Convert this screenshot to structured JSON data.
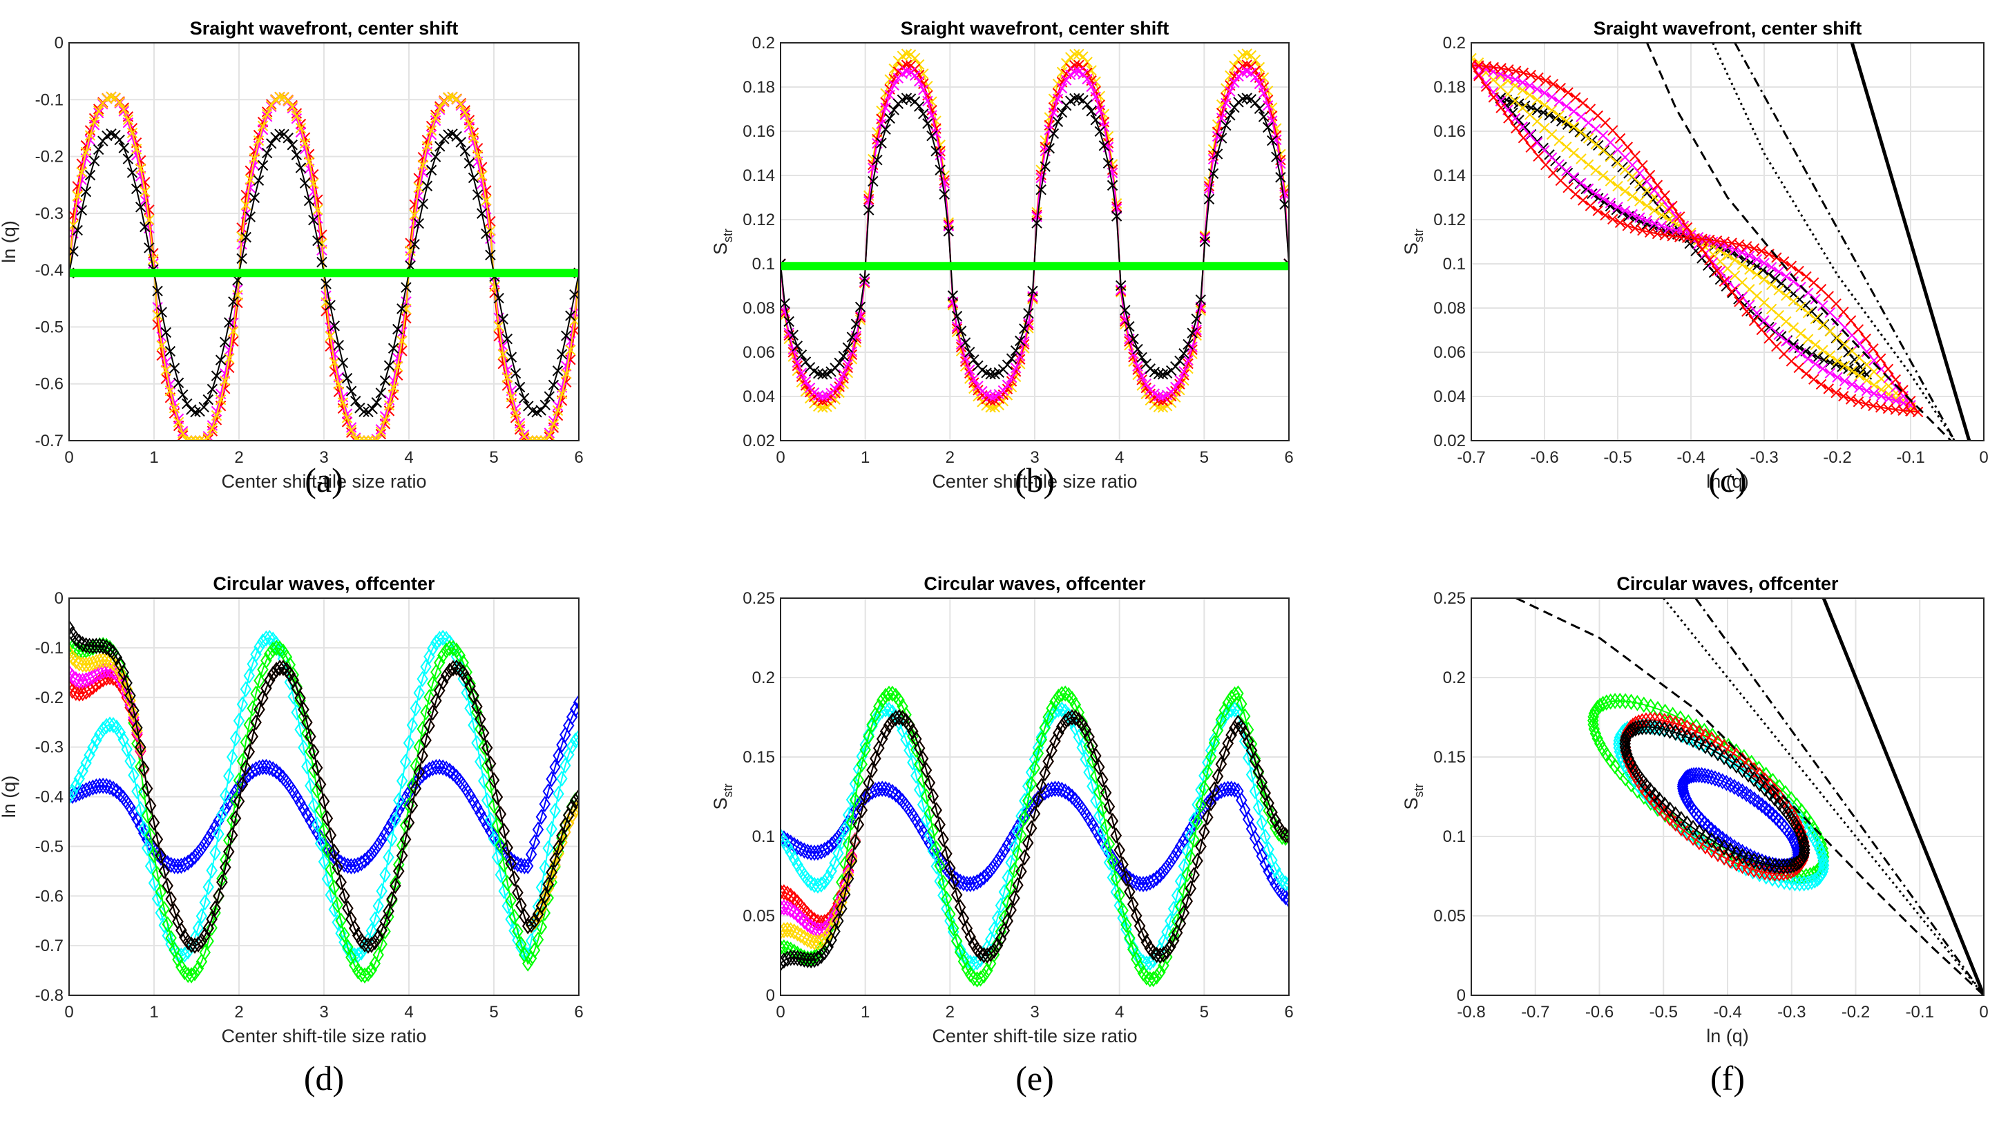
{
  "chart_data": [
    {
      "type": "line",
      "panel_label": "(a)",
      "title": "Sraight wavefront, center shift",
      "xlabel": "Center shift-tile size ratio",
      "ylabel": "ln (q)",
      "xlim": [
        0,
        6
      ],
      "ylim": [
        -0.7,
        0
      ],
      "xticks": [
        "0",
        "1",
        "2",
        "3",
        "4",
        "5",
        "6"
      ],
      "yticks": [
        "-0.7",
        "-0.6",
        "-0.5",
        "-0.4",
        "-0.3",
        "-0.2",
        "-0.1",
        "0"
      ],
      "grid": true,
      "series": [
        {
          "color": "#ff0000",
          "marker": "x",
          "function": "raised-cosine",
          "params": {
            "base": -0.405,
            "amplitude": 0.31,
            "period": 2,
            "peak": 0.5,
            "power": 0.6,
            "min": -0.7
          }
        },
        {
          "color": "#ff00ff",
          "marker": "x",
          "function": "raised-cosine",
          "params": {
            "base": -0.405,
            "amplitude": 0.31,
            "period": 2,
            "peak": 0.5,
            "power": 0.8,
            "min": -0.7
          }
        },
        {
          "color": "#ffd700",
          "marker": "x",
          "function": "raised-cosine",
          "params": {
            "base": -0.405,
            "amplitude": 0.31,
            "period": 2,
            "peak": 0.5,
            "power": 0.7,
            "min": -0.7
          }
        },
        {
          "color": "#000000",
          "marker": "x",
          "function": "raised-cosine",
          "params": {
            "base": -0.405,
            "amplitude": 0.245,
            "period": 2,
            "peak": 0.5,
            "power": 1.0,
            "min": -0.7
          }
        },
        {
          "color": "#00ff00",
          "marker": "line",
          "function": "constant",
          "params": {
            "value": -0.405
          }
        }
      ]
    },
    {
      "type": "line",
      "panel_label": "(b)",
      "title": "Sraight wavefront, center shift",
      "xlabel": "Center shift-tile size ratio",
      "ylabel": "S",
      "ylabel_sub": "str",
      "xlim": [
        0,
        6
      ],
      "ylim": [
        0.02,
        0.2
      ],
      "xticks": [
        "0",
        "1",
        "2",
        "3",
        "4",
        "5",
        "6"
      ],
      "yticks": [
        "0.02",
        "0.04",
        "0.06",
        "0.08",
        "0.1",
        "0.12",
        "0.14",
        "0.16",
        "0.18",
        "0.2"
      ],
      "grid": true,
      "series": [
        {
          "color": "#ffd700",
          "marker": "x",
          "function": "flat-top-wave",
          "params": {
            "base": 0.1,
            "amplitude": 0.095,
            "low_amplitude": 0.065,
            "period": 2,
            "peak": 1.5
          }
        },
        {
          "color": "#ff0000",
          "marker": "x",
          "function": "flat-top-wave",
          "params": {
            "base": 0.1,
            "amplitude": 0.09,
            "low_amplitude": 0.062,
            "period": 2,
            "peak": 1.5
          }
        },
        {
          "color": "#ff00ff",
          "marker": "x",
          "function": "flat-top-wave",
          "params": {
            "base": 0.1,
            "amplitude": 0.087,
            "low_amplitude": 0.06,
            "period": 2,
            "peak": 1.5
          }
        },
        {
          "color": "#000000",
          "marker": "x",
          "function": "flat-top-wave",
          "params": {
            "base": 0.1,
            "amplitude": 0.075,
            "low_amplitude": 0.05,
            "period": 2,
            "peak": 1.5
          }
        },
        {
          "color": "#00ff00",
          "marker": "line",
          "function": "constant",
          "params": {
            "value": 0.099
          }
        }
      ]
    },
    {
      "type": "scatter",
      "panel_label": "(c)",
      "title": "Sraight wavefront, center shift",
      "xlabel": "ln (q)",
      "ylabel": "S",
      "ylabel_sub": "str",
      "xlim": [
        -0.7,
        0
      ],
      "ylim": [
        0.02,
        0.2
      ],
      "xticks": [
        "-0.7",
        "-0.6",
        "-0.5",
        "-0.4",
        "-0.3",
        "-0.2",
        "-0.1",
        "0"
      ],
      "yticks": [
        "0.02",
        "0.04",
        "0.06",
        "0.08",
        "0.1",
        "0.12",
        "0.14",
        "0.16",
        "0.18",
        "0.2"
      ],
      "grid": true,
      "series": [
        {
          "color": "#000000",
          "marker": "x",
          "function": "loop",
          "params": {
            "x_start": -0.66,
            "y_start": 0.175,
            "x_end": -0.16,
            "y_end": 0.05,
            "bulge": 0.012
          }
        },
        {
          "color": "#ffd700",
          "marker": "x",
          "function": "loop",
          "params": {
            "x_start": -0.7,
            "y_start": 0.193,
            "x_end": -0.1,
            "y_end": 0.035,
            "bulge": 0.006
          }
        },
        {
          "color": "#ff00ff",
          "marker": "x",
          "function": "loop",
          "params": {
            "x_start": -0.7,
            "y_start": 0.19,
            "x_end": -0.1,
            "y_end": 0.036,
            "bulge": 0.015
          }
        },
        {
          "color": "#ff0000",
          "marker": "x",
          "function": "loop",
          "params": {
            "x_start": -0.7,
            "y_start": 0.19,
            "x_end": -0.09,
            "y_end": 0.033,
            "bulge": 0.022
          }
        },
        {
          "color": "#000000",
          "marker": "line",
          "dash": "dashed",
          "function": "reference",
          "params": {
            "points": [
              [
                -0.46,
                0.2
              ],
              [
                -0.42,
                0.17
              ],
              [
                -0.35,
                0.13
              ],
              [
                -0.25,
                0.09
              ],
              [
                -0.15,
                0.055
              ],
              [
                -0.09,
                0.035
              ],
              [
                -0.045,
                0.02
              ]
            ]
          }
        },
        {
          "color": "#000000",
          "marker": "line",
          "dash": "dotted",
          "function": "reference",
          "params": {
            "points": [
              [
                -0.37,
                0.2
              ],
              [
                -0.3,
                0.15
              ],
              [
                -0.2,
                0.095
              ],
              [
                -0.1,
                0.05
              ],
              [
                -0.04,
                0.02
              ]
            ]
          }
        },
        {
          "color": "#000000",
          "marker": "line",
          "dash": "dashdot",
          "function": "reference",
          "params": {
            "points": [
              [
                -0.34,
                0.2
              ],
              [
                -0.04,
                0.02
              ]
            ]
          }
        },
        {
          "color": "#000000",
          "marker": "line",
          "dash": "solid",
          "function": "reference",
          "params": {
            "points": [
              [
                -0.18,
                0.2
              ],
              [
                -0.02,
                0.02
              ]
            ]
          }
        }
      ]
    },
    {
      "type": "scatter",
      "panel_label": "(d)",
      "title": "Circular waves, offcenter",
      "xlabel": "Center shift-tile size ratio",
      "ylabel": "ln (q)",
      "xlim": [
        0,
        6
      ],
      "ylim": [
        -0.8,
        0
      ],
      "xticks": [
        "0",
        "1",
        "2",
        "3",
        "4",
        "5",
        "6"
      ],
      "yticks": [
        "-0.8",
        "-0.7",
        "-0.6",
        "-0.5",
        "-0.4",
        "-0.3",
        "-0.2",
        "-0.1",
        "0"
      ],
      "grid": true,
      "series": [
        {
          "color": "#0000ff",
          "marker": "diamond",
          "function": "wave",
          "params": {
            "base": -0.44,
            "amplitude": 0.1,
            "period": 2.05,
            "phase": 2.3,
            "start": -0.4,
            "end": -0.21
          }
        },
        {
          "color": "#00ffff",
          "marker": "diamond",
          "function": "wave",
          "params": {
            "base": -0.4,
            "amplitude": 0.32,
            "period": 2.05,
            "phase": 2.35,
            "start": -0.4,
            "end": -0.28
          }
        },
        {
          "color": "#00ff00",
          "marker": "diamond",
          "function": "wave",
          "params": {
            "base": -0.43,
            "amplitude": 0.33,
            "period": 2.05,
            "phase": 2.45,
            "start": -0.09,
            "end": -0.4
          }
        },
        {
          "color": "#ff0000",
          "marker": "diamond",
          "function": "wave",
          "params": {
            "base": -0.42,
            "amplitude": 0.28,
            "period": 2.05,
            "phase": 2.5,
            "start": -0.18,
            "end": -0.4
          }
        },
        {
          "color": "#ff00ff",
          "marker": "diamond",
          "function": "wave",
          "params": {
            "base": -0.42,
            "amplitude": 0.28,
            "period": 2.05,
            "phase": 2.5,
            "start": -0.15,
            "end": -0.42
          }
        },
        {
          "color": "#ffd700",
          "marker": "diamond",
          "function": "wave",
          "params": {
            "base": -0.42,
            "amplitude": 0.28,
            "period": 2.05,
            "phase": 2.5,
            "start": -0.11,
            "end": -0.42
          }
        },
        {
          "color": "#000000",
          "marker": "diamond",
          "function": "wave",
          "params": {
            "base": -0.42,
            "amplitude": 0.28,
            "period": 2.05,
            "phase": 2.5,
            "start": -0.06,
            "end": -0.4
          }
        }
      ]
    },
    {
      "type": "scatter",
      "panel_label": "(e)",
      "title": "Circular waves, offcenter",
      "xlabel": "Center shift-tile size ratio",
      "ylabel": "S",
      "ylabel_sub": "str",
      "xlim": [
        0,
        6
      ],
      "ylim": [
        0,
        0.25
      ],
      "xticks": [
        "0",
        "1",
        "2",
        "3",
        "4",
        "5",
        "6"
      ],
      "yticks": [
        "0",
        "0.05",
        "0.1",
        "0.15",
        "0.2",
        "0.25"
      ],
      "grid": true,
      "series": [
        {
          "color": "#0000ff",
          "marker": "diamond",
          "function": "wave",
          "params": {
            "base": 0.1,
            "amplitude": 0.03,
            "period": 2.05,
            "phase": 1.2,
            "start": 0.1,
            "end": 0.06
          }
        },
        {
          "color": "#00ffff",
          "marker": "diamond",
          "function": "wave",
          "params": {
            "base": 0.1,
            "amplitude": 0.08,
            "period": 2.05,
            "phase": 1.25,
            "start": 0.1,
            "end": 0.07
          }
        },
        {
          "color": "#00ff00",
          "marker": "diamond",
          "function": "wave",
          "params": {
            "base": 0.1,
            "amplitude": 0.09,
            "period": 2.05,
            "phase": 1.3,
            "start": 0.03,
            "end": 0.1
          }
        },
        {
          "color": "#ff0000",
          "marker": "diamond",
          "function": "wave",
          "params": {
            "base": 0.1,
            "amplitude": 0.075,
            "period": 2.05,
            "phase": 1.4,
            "start": 0.065,
            "end": 0.1
          }
        },
        {
          "color": "#ff00ff",
          "marker": "diamond",
          "function": "wave",
          "params": {
            "base": 0.1,
            "amplitude": 0.075,
            "period": 2.05,
            "phase": 1.4,
            "start": 0.055,
            "end": 0.1
          }
        },
        {
          "color": "#ffd700",
          "marker": "diamond",
          "function": "wave",
          "params": {
            "base": 0.1,
            "amplitude": 0.075,
            "period": 2.05,
            "phase": 1.4,
            "start": 0.04,
            "end": 0.1
          }
        },
        {
          "color": "#000000",
          "marker": "diamond",
          "function": "wave",
          "params": {
            "base": 0.1,
            "amplitude": 0.075,
            "period": 2.05,
            "phase": 1.4,
            "start": 0.02,
            "end": 0.1
          }
        }
      ]
    },
    {
      "type": "scatter",
      "panel_label": "(f)",
      "title": "Circular waves, offcenter",
      "xlabel": "ln (q)",
      "ylabel": "S",
      "ylabel_sub": "str",
      "xlim": [
        -0.8,
        0
      ],
      "ylim": [
        0,
        0.25
      ],
      "xticks": [
        "-0.8",
        "-0.7",
        "-0.6",
        "-0.5",
        "-0.4",
        "-0.3",
        "-0.2",
        "-0.1",
        "0"
      ],
      "yticks": [
        "0",
        "0.05",
        "0.1",
        "0.15",
        "0.2",
        "0.25"
      ],
      "grid": true,
      "series": [
        {
          "color": "#00ff00",
          "marker": "diamond",
          "function": "ellipse",
          "params": {
            "cx": -0.43,
            "cy": 0.13,
            "a": 0.36,
            "b": 0.022,
            "angle": -0.2
          }
        },
        {
          "color": "#00ffff",
          "marker": "diamond",
          "function": "ellipse",
          "params": {
            "cx": -0.41,
            "cy": 0.12,
            "a": 0.32,
            "b": 0.02,
            "angle": -0.2
          }
        },
        {
          "color": "#0000ff",
          "marker": "diamond",
          "function": "ellipse",
          "params": {
            "cx": -0.38,
            "cy": 0.11,
            "a": 0.18,
            "b": 0.012,
            "angle": -0.2
          }
        },
        {
          "color": "#ff0000",
          "marker": "diamond",
          "function": "ellipse",
          "params": {
            "cx": -0.42,
            "cy": 0.125,
            "a": 0.28,
            "b": 0.022,
            "angle": -0.2
          }
        },
        {
          "color": "#000000",
          "marker": "diamond",
          "function": "ellipse",
          "params": {
            "cx": -0.42,
            "cy": 0.125,
            "a": 0.28,
            "b": 0.018,
            "angle": -0.2
          }
        },
        {
          "color": "#000000",
          "marker": "line",
          "dash": "dashed",
          "function": "reference",
          "params": {
            "points": [
              [
                -0.73,
                0.25
              ],
              [
                -0.6,
                0.225
              ],
              [
                -0.45,
                0.18
              ],
              [
                -0.3,
                0.12
              ],
              [
                -0.18,
                0.07
              ],
              [
                -0.08,
                0.03
              ],
              [
                0,
                0
              ]
            ]
          }
        },
        {
          "color": "#000000",
          "marker": "line",
          "dash": "dotted",
          "function": "reference",
          "params": {
            "points": [
              [
                -0.5,
                0.25
              ],
              [
                -0.3,
                0.15
              ],
              [
                -0.15,
                0.075
              ],
              [
                0,
                0
              ]
            ]
          }
        },
        {
          "color": "#000000",
          "marker": "line",
          "dash": "dashdot",
          "function": "reference",
          "params": {
            "points": [
              [
                -0.45,
                0.25
              ],
              [
                0,
                0
              ]
            ]
          }
        },
        {
          "color": "#000000",
          "marker": "line",
          "dash": "solid",
          "function": "reference",
          "params": {
            "points": [
              [
                -0.25,
                0.25
              ],
              [
                0,
                0
              ]
            ]
          }
        }
      ]
    }
  ]
}
